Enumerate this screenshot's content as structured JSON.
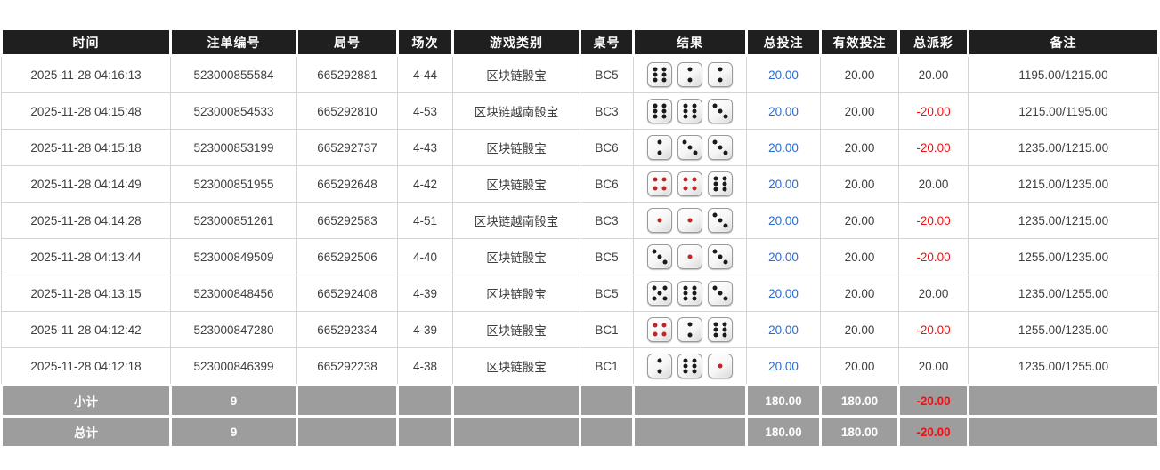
{
  "table": {
    "columns": [
      {
        "key": "time",
        "label": "时间"
      },
      {
        "key": "bet_id",
        "label": "注单编号"
      },
      {
        "key": "round_id",
        "label": "局号"
      },
      {
        "key": "session",
        "label": "场次"
      },
      {
        "key": "game_type",
        "label": "游戏类别"
      },
      {
        "key": "table_no",
        "label": "桌号"
      },
      {
        "key": "result",
        "label": "结果"
      },
      {
        "key": "total_bet",
        "label": "总投注"
      },
      {
        "key": "valid_bet",
        "label": "有效投注"
      },
      {
        "key": "total_payout",
        "label": "总派彩"
      },
      {
        "key": "remark",
        "label": "备注"
      }
    ],
    "rows": [
      {
        "time": "2025-11-28 04:16:13",
        "bet_id": "523000855584",
        "round_id": "665292881",
        "session": "4-44",
        "game_type": "区块链骰宝",
        "table_no": "BC5",
        "dice": [
          6,
          2,
          2
        ],
        "total_bet": "20.00",
        "valid_bet": "20.00",
        "total_payout": "20.00",
        "remark": "1195.00/1215.00"
      },
      {
        "time": "2025-11-28 04:15:48",
        "bet_id": "523000854533",
        "round_id": "665292810",
        "session": "4-53",
        "game_type": "区块链越南骰宝",
        "table_no": "BC3",
        "dice": [
          6,
          6,
          3
        ],
        "total_bet": "20.00",
        "valid_bet": "20.00",
        "total_payout": "-20.00",
        "remark": "1215.00/1195.00"
      },
      {
        "time": "2025-11-28 04:15:18",
        "bet_id": "523000853199",
        "round_id": "665292737",
        "session": "4-43",
        "game_type": "区块链骰宝",
        "table_no": "BC6",
        "dice": [
          2,
          3,
          3
        ],
        "total_bet": "20.00",
        "valid_bet": "20.00",
        "total_payout": "-20.00",
        "remark": "1235.00/1215.00"
      },
      {
        "time": "2025-11-28 04:14:49",
        "bet_id": "523000851955",
        "round_id": "665292648",
        "session": "4-42",
        "game_type": "区块链骰宝",
        "table_no": "BC6",
        "dice": [
          4,
          4,
          6
        ],
        "total_bet": "20.00",
        "valid_bet": "20.00",
        "total_payout": "20.00",
        "remark": "1215.00/1235.00"
      },
      {
        "time": "2025-11-28 04:14:28",
        "bet_id": "523000851261",
        "round_id": "665292583",
        "session": "4-51",
        "game_type": "区块链越南骰宝",
        "table_no": "BC3",
        "dice": [
          1,
          1,
          3
        ],
        "total_bet": "20.00",
        "valid_bet": "20.00",
        "total_payout": "-20.00",
        "remark": "1235.00/1215.00"
      },
      {
        "time": "2025-11-28 04:13:44",
        "bet_id": "523000849509",
        "round_id": "665292506",
        "session": "4-40",
        "game_type": "区块链骰宝",
        "table_no": "BC5",
        "dice": [
          3,
          1,
          3
        ],
        "total_bet": "20.00",
        "valid_bet": "20.00",
        "total_payout": "-20.00",
        "remark": "1255.00/1235.00"
      },
      {
        "time": "2025-11-28 04:13:15",
        "bet_id": "523000848456",
        "round_id": "665292408",
        "session": "4-39",
        "game_type": "区块链骰宝",
        "table_no": "BC5",
        "dice": [
          5,
          6,
          3
        ],
        "total_bet": "20.00",
        "valid_bet": "20.00",
        "total_payout": "20.00",
        "remark": "1235.00/1255.00"
      },
      {
        "time": "2025-11-28 04:12:42",
        "bet_id": "523000847280",
        "round_id": "665292334",
        "session": "4-39",
        "game_type": "区块链骰宝",
        "table_no": "BC1",
        "dice": [
          4,
          2,
          6
        ],
        "total_bet": "20.00",
        "valid_bet": "20.00",
        "total_payout": "-20.00",
        "remark": "1255.00/1235.00"
      },
      {
        "time": "2025-11-28 04:12:18",
        "bet_id": "523000846399",
        "round_id": "665292238",
        "session": "4-38",
        "game_type": "区块链骰宝",
        "table_no": "BC1",
        "dice": [
          2,
          6,
          1
        ],
        "total_bet": "20.00",
        "valid_bet": "20.00",
        "total_payout": "20.00",
        "remark": "1235.00/1255.00"
      }
    ],
    "summary_rows": [
      {
        "label": "小计",
        "count": "9",
        "total_bet": "180.00",
        "valid_bet": "180.00",
        "total_payout": "-20.00",
        "remark": ""
      },
      {
        "label": "总计",
        "count": "9",
        "total_bet": "180.00",
        "valid_bet": "180.00",
        "total_payout": "-20.00",
        "remark": ""
      }
    ]
  },
  "colors": {
    "header_bg": "#1f1f1f",
    "accent_blue": "#2a6bd2",
    "negative_red": "#ee1111",
    "footer_bg": "#9d9d9d",
    "dice_pip_black": "#1a1a1a",
    "dice_pip_red": "#c22525"
  }
}
